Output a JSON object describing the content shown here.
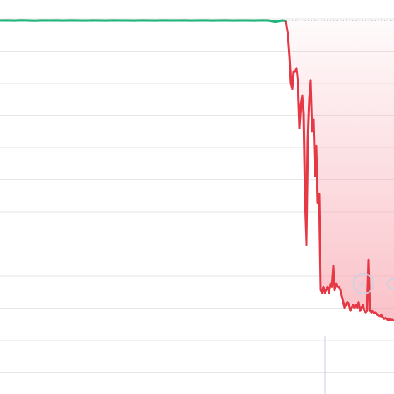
{
  "chart_data": {
    "type": "line",
    "grid": true,
    "colors": {
      "grid": "#e6e6e6",
      "baseline": "#9a9a9a",
      "up": "#1fb57a",
      "down": "#e63946",
      "fill": "#f7a1ab",
      "marker": "#c9d3e3",
      "crosshair": "#c9cfe6"
    },
    "icons": [
      "watermark-logo-icon"
    ],
    "series": [
      {
        "color": "#e63946",
        "x": [
          0,
          10,
          20,
          30,
          40,
          50,
          60,
          70,
          80,
          90,
          100,
          110,
          120,
          130,
          140,
          150,
          160,
          170,
          180,
          190,
          200,
          210,
          220,
          230,
          240,
          250,
          260,
          270,
          280,
          290,
          300,
          310,
          320,
          330,
          340,
          350,
          360,
          370,
          380,
          390,
          400,
          405,
          408,
          410,
          412,
          414,
          416,
          418,
          420,
          422,
          424,
          426,
          428,
          430,
          432,
          434,
          436,
          438,
          440,
          442,
          444,
          446,
          448,
          450,
          452,
          454,
          456,
          458,
          460,
          462,
          464,
          466,
          468,
          470,
          472,
          474,
          476,
          478,
          480,
          482,
          484,
          486,
          488,
          490,
          492,
          494,
          496,
          498,
          500,
          502,
          504,
          506,
          508,
          510,
          512,
          514,
          516,
          518,
          520,
          522,
          524,
          526,
          527,
          528,
          530,
          532,
          534,
          536,
          538,
          540,
          542,
          544,
          546,
          548,
          550,
          552,
          554,
          556,
          558
        ],
        "y": [
          100,
          100.02,
          99.98,
          100.05,
          100,
          99.95,
          100.03,
          100,
          100.02,
          99.97,
          100.04,
          100,
          99.98,
          100.02,
          100,
          99.96,
          100.03,
          100,
          100.01,
          99.97,
          100.02,
          100,
          99.98,
          100.03,
          100,
          99.99,
          100.02,
          99.98,
          100,
          100.03,
          99.97,
          100,
          100.02,
          99.98,
          100.01,
          100,
          99.97,
          100.02,
          100,
          99.6,
          100,
          99.8,
          95,
          88,
          79,
          77,
          83,
          83,
          84,
          79,
          64,
          72,
          75,
          69,
          40,
          25,
          60,
          74,
          80,
          63,
          67,
          48,
          58,
          39,
          42,
          10,
          9,
          11,
          9,
          10,
          11,
          9,
          12,
          11,
          18,
          10,
          12,
          11,
          11,
          10,
          8,
          6,
          4,
          5,
          6,
          5,
          3,
          4,
          5,
          4,
          5,
          4,
          6,
          3,
          4,
          5,
          3,
          2.5,
          3,
          20,
          3,
          2.5,
          3,
          2.8,
          2.2,
          2.4,
          1.9,
          1.5,
          1.2,
          1.8,
          0.8,
          0.4,
          0.6,
          0.2,
          0,
          0.3,
          0,
          0,
          -0.3
        ]
      }
    ]
  }
}
